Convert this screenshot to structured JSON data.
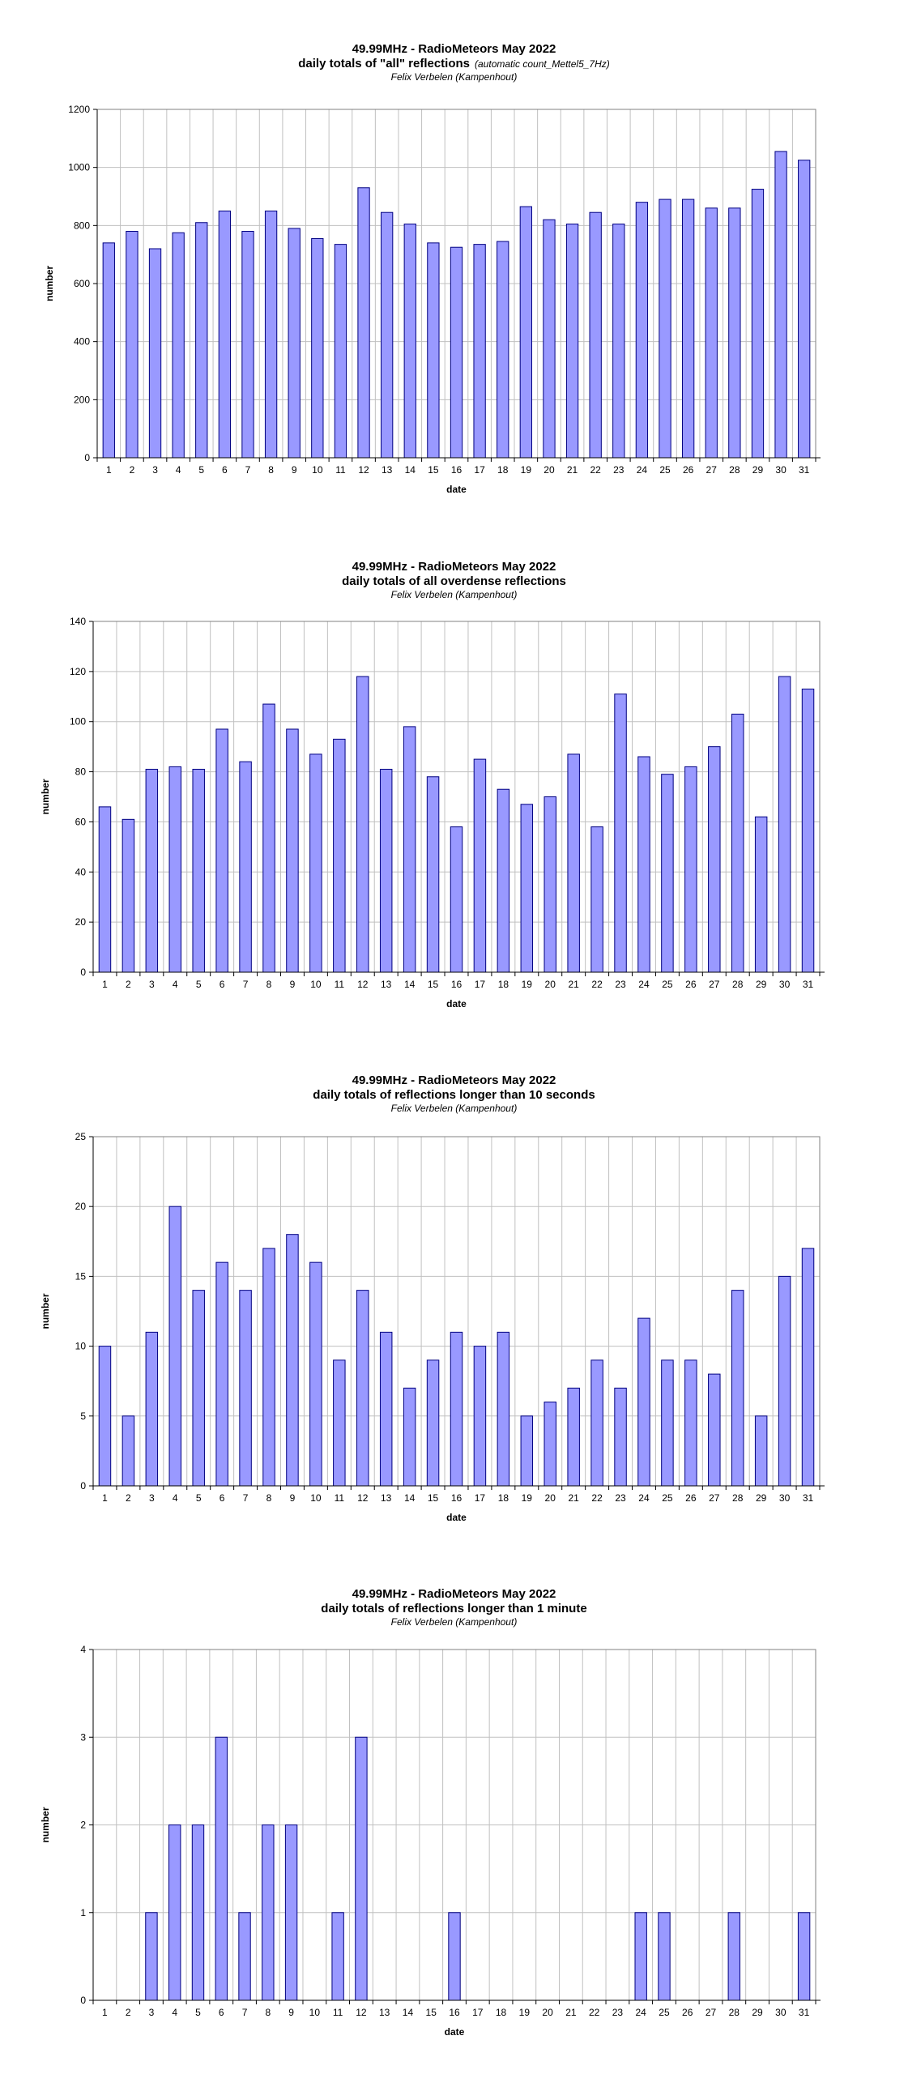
{
  "chart_data": [
    {
      "type": "bar",
      "title": "49.99MHz - RadioMeteors May 2022",
      "subtitle": "daily totals of \"all\" reflections",
      "subtitle_note": "(automatic count_Mettel5_7Hz)",
      "author": "Felix Verbelen (Kampenhout)",
      "xlabel": "date",
      "ylabel": "number",
      "ylim": [
        0,
        1200
      ],
      "yticks": [
        0,
        200,
        400,
        600,
        800,
        1000,
        1200
      ],
      "categories": [
        "1",
        "2",
        "3",
        "4",
        "5",
        "6",
        "7",
        "8",
        "9",
        "10",
        "11",
        "12",
        "13",
        "14",
        "15",
        "16",
        "17",
        "18",
        "19",
        "20",
        "21",
        "22",
        "23",
        "24",
        "25",
        "26",
        "27",
        "28",
        "29",
        "30",
        "31"
      ],
      "values": [
        740,
        780,
        720,
        775,
        810,
        850,
        780,
        850,
        790,
        755,
        735,
        930,
        845,
        805,
        740,
        725,
        735,
        745,
        865,
        820,
        805,
        845,
        805,
        880,
        890,
        890,
        860,
        860,
        925,
        1055,
        1025
      ],
      "bar_color": "#9999ff",
      "grid": true
    },
    {
      "type": "bar",
      "title": "49.99MHz - RadioMeteors May 2022",
      "subtitle": "daily totals of all overdense reflections",
      "author": "Felix Verbelen (Kampenhout)",
      "xlabel": "date",
      "ylabel": "number",
      "ylim": [
        0,
        140
      ],
      "yticks": [
        0,
        20,
        40,
        60,
        80,
        100,
        120,
        140
      ],
      "categories": [
        "1",
        "2",
        "3",
        "4",
        "5",
        "6",
        "7",
        "8",
        "9",
        "10",
        "11",
        "12",
        "13",
        "14",
        "15",
        "16",
        "17",
        "18",
        "19",
        "20",
        "21",
        "22",
        "23",
        "24",
        "25",
        "26",
        "27",
        "28",
        "29",
        "30",
        "31"
      ],
      "values": [
        66,
        61,
        81,
        82,
        81,
        97,
        84,
        107,
        97,
        87,
        93,
        118,
        81,
        98,
        78,
        58,
        85,
        73,
        67,
        70,
        87,
        58,
        111,
        86,
        79,
        82,
        90,
        103,
        62,
        118,
        113
      ],
      "bar_color": "#9999ff",
      "grid": true
    },
    {
      "type": "bar",
      "title": "49.99MHz - RadioMeteors May 2022",
      "subtitle": "daily totals of reflections longer than 10 seconds",
      "author": "Felix Verbelen (Kampenhout)",
      "xlabel": "date",
      "ylabel": "number",
      "ylim": [
        0,
        25
      ],
      "yticks": [
        0,
        5,
        10,
        15,
        20,
        25
      ],
      "categories": [
        "1",
        "2",
        "3",
        "4",
        "5",
        "6",
        "7",
        "8",
        "9",
        "10",
        "11",
        "12",
        "13",
        "14",
        "15",
        "16",
        "17",
        "18",
        "19",
        "20",
        "21",
        "22",
        "23",
        "24",
        "25",
        "26",
        "27",
        "28",
        "29",
        "30",
        "31"
      ],
      "values": [
        10,
        5,
        11,
        20,
        14,
        16,
        14,
        17,
        18,
        16,
        9,
        14,
        11,
        7,
        9,
        11,
        10,
        11,
        5,
        6,
        7,
        9,
        7,
        12,
        9,
        9,
        8,
        14,
        5,
        15,
        17
      ],
      "bar_color": "#9999ff",
      "grid": true
    },
    {
      "type": "bar",
      "title": "49.99MHz - RadioMeteors May 2022",
      "subtitle": "daily totals of reflections longer than 1 minute",
      "author": "Felix Verbelen (Kampenhout)",
      "xlabel": "date",
      "ylabel": "number",
      "ylim": [
        0,
        4
      ],
      "yticks": [
        0,
        1,
        2,
        3,
        4
      ],
      "categories": [
        "1",
        "2",
        "3",
        "4",
        "5",
        "6",
        "7",
        "8",
        "9",
        "10",
        "11",
        "12",
        "13",
        "14",
        "15",
        "16",
        "17",
        "18",
        "19",
        "20",
        "21",
        "22",
        "23",
        "24",
        "25",
        "26",
        "27",
        "28",
        "29",
        "30",
        "31"
      ],
      "values": [
        0,
        0,
        1,
        2,
        2,
        3,
        1,
        2,
        2,
        0,
        1,
        3,
        0,
        0,
        0,
        1,
        0,
        0,
        0,
        0,
        0,
        0,
        0,
        1,
        1,
        0,
        0,
        1,
        0,
        0,
        1
      ],
      "bar_color": "#9999ff",
      "grid": true
    }
  ]
}
